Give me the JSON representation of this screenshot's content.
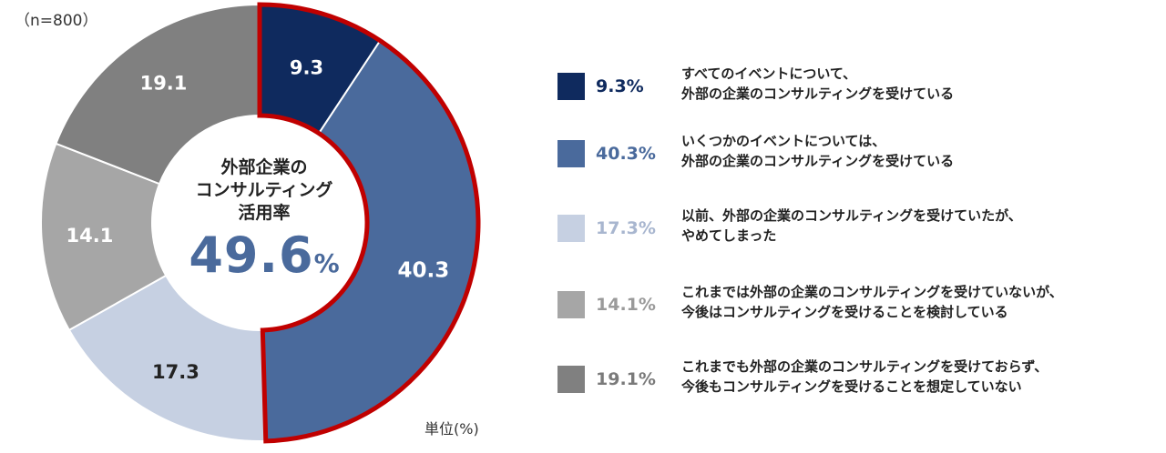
{
  "chart_data": {
    "type": "pie",
    "n_label": "（n=800）",
    "unit_label": "単位(%)",
    "center": {
      "lines": [
        "外部企業の",
        "コンサルティング",
        "活用率"
      ],
      "value": "49.6",
      "unit": "%"
    },
    "highlight_color": "#c00000",
    "highlighted_slices": [
      0,
      1
    ],
    "slices": [
      {
        "value": 9.3,
        "label": "9.3",
        "legend_pct": "9.3%",
        "color": "#0f2a5e",
        "label_color": "#ffffff",
        "pct_color": "#0f2a5e",
        "text": [
          "すべてのイベントについて、",
          "外部の企業のコンサルティングを受けている"
        ]
      },
      {
        "value": 40.3,
        "label": "40.3",
        "legend_pct": "40.3%",
        "color": "#4a6a9c",
        "label_color": "#ffffff",
        "pct_color": "#4a6a9c",
        "text": [
          "いくつかのイベントについては、",
          "外部の企業のコンサルティングを受けている"
        ]
      },
      {
        "value": 17.3,
        "label": "17.3",
        "legend_pct": "17.3%",
        "color": "#c6d0e2",
        "label_color": "#222222",
        "pct_color": "#a8b6cf",
        "text": [
          "以前、外部の企業のコンサルティングを受けていたが、",
          "やめてしまった"
        ]
      },
      {
        "value": 14.1,
        "label": "14.1",
        "legend_pct": "14.1%",
        "color": "#a6a6a6",
        "label_color": "#ffffff",
        "pct_color": "#9a9a9a",
        "text": [
          "これまでは外部の企業のコンサルティングを受けていないが、",
          "今後はコンサルティングを受けることを検討している"
        ]
      },
      {
        "value": 19.1,
        "label": "19.1",
        "legend_pct": "19.1%",
        "color": "#808080",
        "label_color": "#ffffff",
        "pct_color": "#7a7a7a",
        "text": [
          "これまでも外部の企業のコンサルティングを受けておらず、",
          "今後もコンサルティングを受けることを想定していない"
        ]
      }
    ]
  }
}
